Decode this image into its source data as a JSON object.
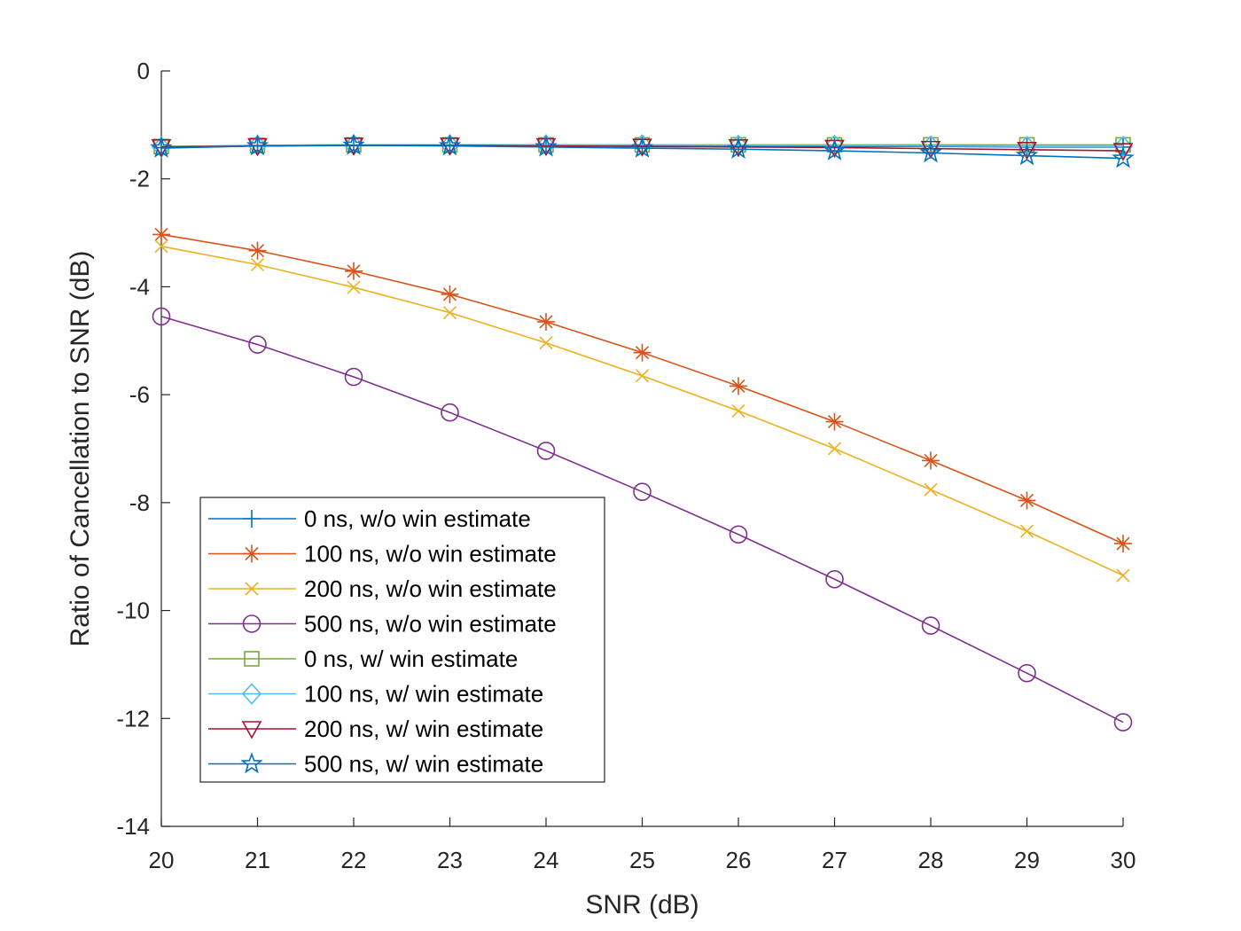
{
  "chart_data": {
    "type": "line",
    "title": "",
    "xlabel": "SNR (dB)",
    "ylabel": "Ratio of Cancellation to SNR (dB)",
    "xlim": [
      20,
      30
    ],
    "ylim": [
      -14,
      0
    ],
    "xticks": [
      20,
      21,
      22,
      23,
      24,
      25,
      26,
      27,
      28,
      29,
      30
    ],
    "yticks": [
      0,
      -2,
      -4,
      -6,
      -8,
      -10,
      -12,
      -14
    ],
    "grid": false,
    "legend_position": "bottom-left",
    "x": [
      20,
      21,
      22,
      23,
      24,
      25,
      26,
      27,
      28,
      29,
      30
    ],
    "series": [
      {
        "name": "0 ns, w/o win estimate",
        "color": "#0072BD",
        "marker": "plus",
        "values": [
          -1.42,
          -1.39,
          -1.38,
          -1.38,
          -1.39,
          -1.39,
          -1.39,
          -1.4,
          -1.4,
          -1.41,
          -1.41
        ]
      },
      {
        "name": "100 ns, w/o win estimate",
        "color": "#D95319",
        "marker": "asterisk",
        "values": [
          -3.03,
          -3.33,
          -3.71,
          -4.14,
          -4.65,
          -5.22,
          -5.84,
          -6.5,
          -7.22,
          -7.96,
          -8.76
        ]
      },
      {
        "name": "200 ns, w/o win estimate",
        "color": "#EDB120",
        "marker": "x",
        "values": [
          -3.25,
          -3.59,
          -4.01,
          -4.48,
          -5.04,
          -5.65,
          -6.3,
          -7.0,
          -7.76,
          -8.53,
          -9.35
        ]
      },
      {
        "name": "500 ns, w/o win estimate",
        "color": "#7E2F8E",
        "marker": "circle",
        "values": [
          -4.55,
          -5.07,
          -5.67,
          -6.33,
          -7.04,
          -7.8,
          -8.59,
          -9.42,
          -10.28,
          -11.16,
          -12.07
        ]
      },
      {
        "name": "0 ns, w/ win estimate",
        "color": "#77AC30",
        "marker": "square",
        "values": [
          -1.4,
          -1.38,
          -1.37,
          -1.37,
          -1.37,
          -1.37,
          -1.37,
          -1.37,
          -1.37,
          -1.37,
          -1.37
        ]
      },
      {
        "name": "100 ns, w/ win estimate",
        "color": "#4DBEEE",
        "marker": "diamond",
        "values": [
          -1.41,
          -1.38,
          -1.37,
          -1.37,
          -1.37,
          -1.37,
          -1.38,
          -1.38,
          -1.39,
          -1.4,
          -1.4
        ]
      },
      {
        "name": "200 ns, w/ win estimate",
        "color": "#A2142F",
        "marker": "triangle-down",
        "values": [
          -1.41,
          -1.39,
          -1.38,
          -1.38,
          -1.39,
          -1.4,
          -1.41,
          -1.42,
          -1.44,
          -1.46,
          -1.48
        ]
      },
      {
        "name": "500 ns, w/ win estimate",
        "color": "#0072BD",
        "marker": "pentagram",
        "values": [
          -1.43,
          -1.39,
          -1.38,
          -1.39,
          -1.41,
          -1.43,
          -1.45,
          -1.48,
          -1.52,
          -1.57,
          -1.62
        ]
      }
    ]
  }
}
